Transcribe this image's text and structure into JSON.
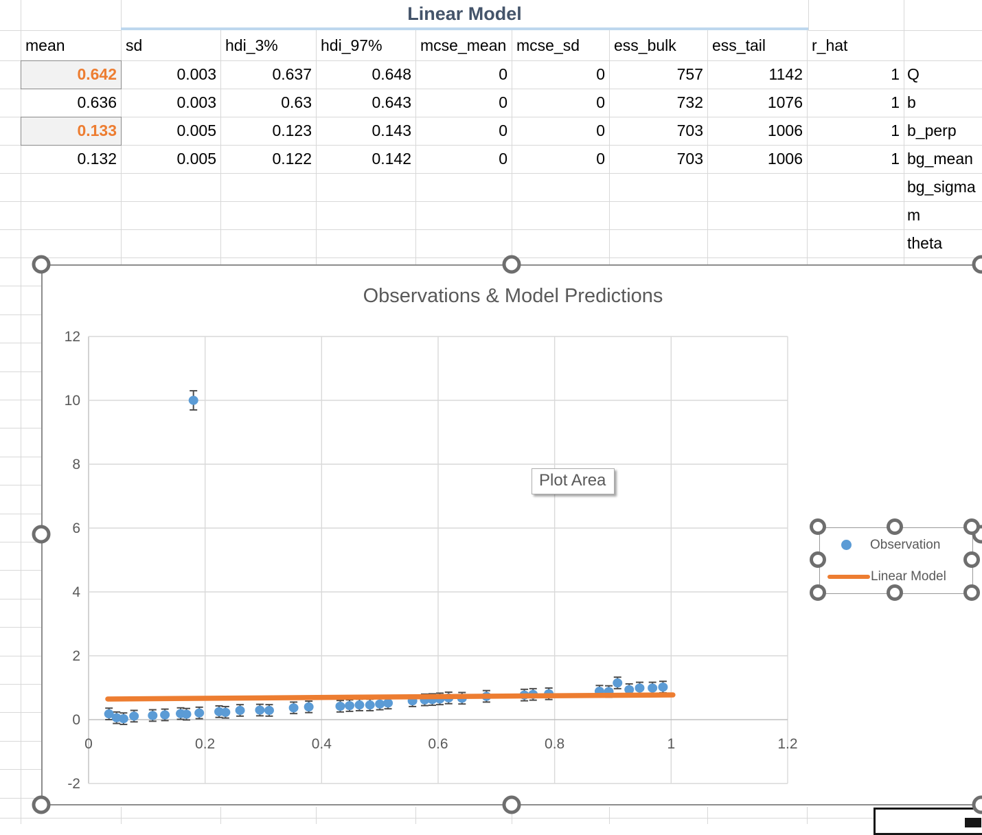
{
  "sheet": {
    "title": "Linear Model",
    "columns": [
      "mean",
      "sd",
      "hdi_3%",
      "hdi_97%",
      "mcse_mean",
      "mcse_sd",
      "ess_bulk",
      "ess_tail",
      "r_hat"
    ],
    "rows": [
      {
        "param": "Q",
        "values": [
          "0.642",
          "0.003",
          "0.637",
          "0.648",
          "0",
          "0",
          "757",
          "1142",
          "1"
        ],
        "highlight_mean": true
      },
      {
        "param": "b",
        "values": [
          "0.636",
          "0.003",
          "0.63",
          "0.643",
          "0",
          "0",
          "732",
          "1076",
          "1"
        ],
        "highlight_mean": false
      },
      {
        "param": "b_perp",
        "values": [
          "0.133",
          "0.005",
          "0.123",
          "0.143",
          "0",
          "0",
          "703",
          "1006",
          "1"
        ],
        "highlight_mean": true
      },
      {
        "param": "bg_mean",
        "values": [
          "0.132",
          "0.005",
          "0.122",
          "0.142",
          "0",
          "0",
          "703",
          "1006",
          "1"
        ],
        "highlight_mean": false
      },
      {
        "param": "bg_sigma",
        "values": [],
        "highlight_mean": false
      },
      {
        "param": "m",
        "values": [],
        "highlight_mean": false
      },
      {
        "param": "theta",
        "values": [],
        "highlight_mean": false
      }
    ],
    "colors": {
      "highlight_text": "#ED7D31",
      "highlight_fill": "#F2F2F2",
      "title": "#44546A",
      "title_underline": "#BDD7EE"
    }
  },
  "chart_data": {
    "type": "scatter",
    "title": "Observations & Model Predictions",
    "tooltip": "Plot Area",
    "xlim": [
      0,
      1.2
    ],
    "ylim": [
      -2,
      12
    ],
    "x_ticks": [
      [
        0,
        "0"
      ],
      [
        0.2,
        "0.2"
      ],
      [
        0.4,
        "0.4"
      ],
      [
        0.6,
        "0.6"
      ],
      [
        0.8,
        "0.8"
      ],
      [
        1,
        "1"
      ],
      [
        1.2,
        "1.2"
      ]
    ],
    "y_ticks": [
      [
        -2,
        "-2"
      ],
      [
        0,
        "0"
      ],
      [
        2,
        "2"
      ],
      [
        4,
        "4"
      ],
      [
        6,
        "6"
      ],
      [
        8,
        "8"
      ],
      [
        10,
        "10"
      ],
      [
        12,
        "12"
      ]
    ],
    "grid": true,
    "legend_position": "right",
    "colors": {
      "observation": "#5B9BD5",
      "linear_model": "#ED7D31",
      "error_bar": "#4D4D4D",
      "axis_text": "#595959",
      "gridline": "#D9D9D9"
    },
    "series": [
      {
        "name": "Observation",
        "type": "scatter",
        "color": "#5B9BD5",
        "default_error": 0.18,
        "points": [
          [
            0.035,
            0.18
          ],
          [
            0.048,
            0.06
          ],
          [
            0.06,
            0.03
          ],
          [
            0.078,
            0.11
          ],
          [
            0.11,
            0.13
          ],
          [
            0.131,
            0.15
          ],
          [
            0.158,
            0.19
          ],
          [
            0.168,
            0.17
          ],
          [
            0.18,
            10.0,
            0.3
          ],
          [
            0.19,
            0.21
          ],
          [
            0.224,
            0.25
          ],
          [
            0.235,
            0.23
          ],
          [
            0.26,
            0.29
          ],
          [
            0.294,
            0.3
          ],
          [
            0.31,
            0.29
          ],
          [
            0.352,
            0.37
          ],
          [
            0.378,
            0.4
          ],
          [
            0.432,
            0.42
          ],
          [
            0.448,
            0.44
          ],
          [
            0.465,
            0.46
          ],
          [
            0.483,
            0.46
          ],
          [
            0.5,
            0.49
          ],
          [
            0.514,
            0.52
          ],
          [
            0.556,
            0.59
          ],
          [
            0.577,
            0.62
          ],
          [
            0.59,
            0.63
          ],
          [
            0.603,
            0.65
          ],
          [
            0.618,
            0.68
          ],
          [
            0.641,
            0.67
          ],
          [
            0.683,
            0.73
          ],
          [
            0.748,
            0.77
          ],
          [
            0.763,
            0.79
          ],
          [
            0.79,
            0.81
          ],
          [
            0.877,
            0.89
          ],
          [
            0.893,
            0.88
          ],
          [
            0.908,
            1.15
          ],
          [
            0.928,
            0.94
          ],
          [
            0.946,
            0.99
          ],
          [
            0.968,
            0.99
          ],
          [
            0.986,
            1.02
          ]
        ]
      },
      {
        "name": "Linear Model",
        "type": "line",
        "color": "#ED7D31",
        "points": [
          [
            0.033,
            0.646
          ],
          [
            1.003,
            0.775
          ]
        ]
      }
    ]
  }
}
